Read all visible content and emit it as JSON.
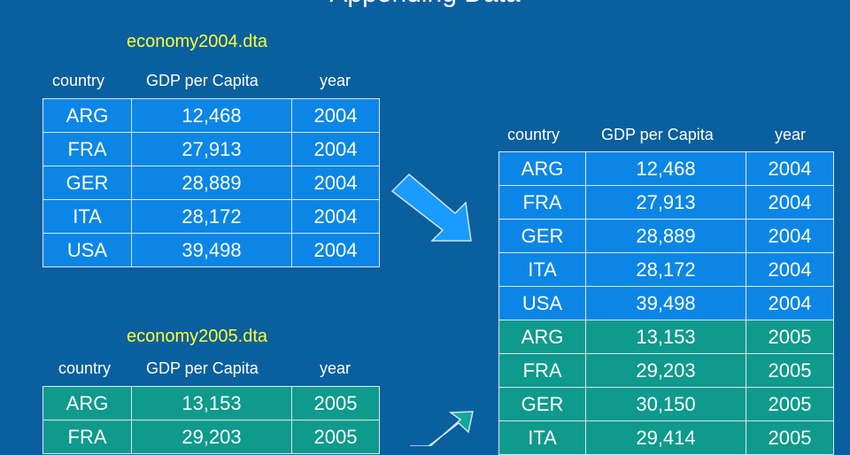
{
  "title": "Appending Data",
  "colors": {
    "background": "#0a5f9e",
    "row_2004": "#0b86e6",
    "row_2005": "#0e9a8c",
    "filename": "#ffff33",
    "arrow": "#1a9bff"
  },
  "headers": {
    "country": "country",
    "gdp": "GDP per Capita",
    "year": "year"
  },
  "table2004": {
    "filename": "economy2004.dta",
    "rows": [
      {
        "country": "ARG",
        "gdp": "12,468",
        "year": "2004"
      },
      {
        "country": "FRA",
        "gdp": "27,913",
        "year": "2004"
      },
      {
        "country": "GER",
        "gdp": "28,889",
        "year": "2004"
      },
      {
        "country": "ITA",
        "gdp": "28,172",
        "year": "2004"
      },
      {
        "country": "USA",
        "gdp": "39,498",
        "year": "2004"
      }
    ]
  },
  "table2005": {
    "filename": "economy2005.dta",
    "rows": [
      {
        "country": "ARG",
        "gdp": "13,153",
        "year": "2005"
      },
      {
        "country": "FRA",
        "gdp": "29,203",
        "year": "2005"
      }
    ]
  },
  "combined": {
    "rows": [
      {
        "country": "ARG",
        "gdp": "12,468",
        "year": "2004"
      },
      {
        "country": "FRA",
        "gdp": "27,913",
        "year": "2004"
      },
      {
        "country": "GER",
        "gdp": "28,889",
        "year": "2004"
      },
      {
        "country": "ITA",
        "gdp": "28,172",
        "year": "2004"
      },
      {
        "country": "USA",
        "gdp": "39,498",
        "year": "2004"
      },
      {
        "country": "ARG",
        "gdp": "13,153",
        "year": "2005"
      },
      {
        "country": "FRA",
        "gdp": "29,203",
        "year": "2005"
      },
      {
        "country": "GER",
        "gdp": "30,150",
        "year": "2005"
      },
      {
        "country": "ITA",
        "gdp": "29,414",
        "year": "2005"
      }
    ]
  }
}
